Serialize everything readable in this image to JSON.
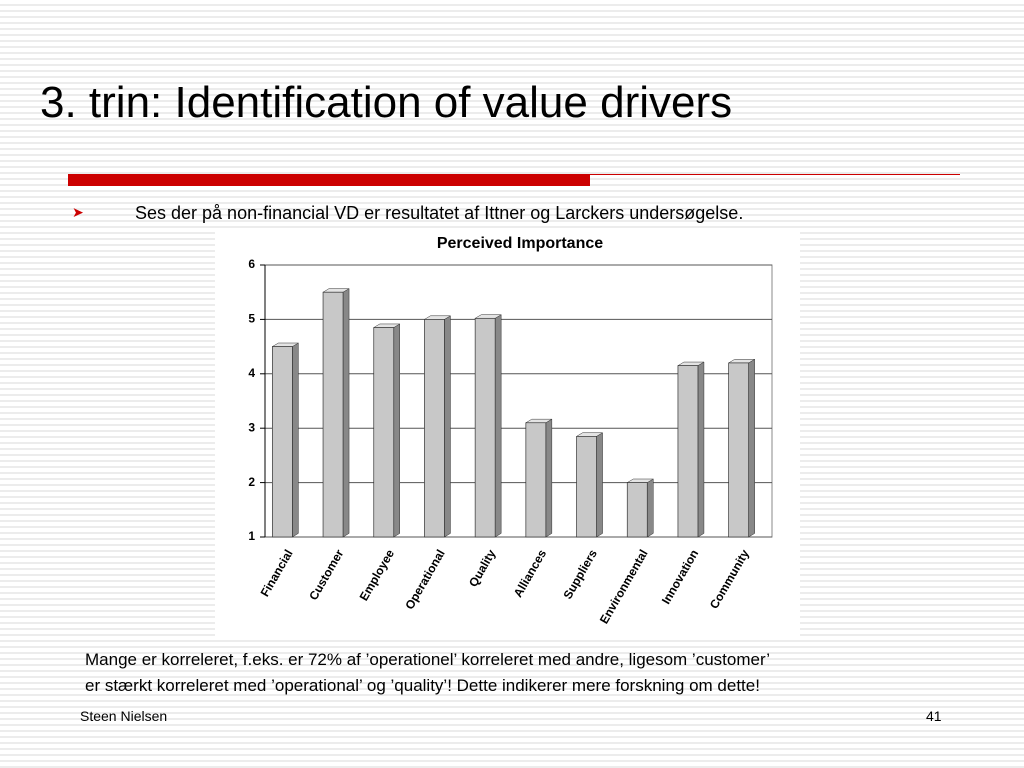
{
  "slide": {
    "title": "3. trin: Identification of value drivers",
    "bullet": "Ses der på non-financial VD er resultatet af Ittner og Larckers undersøgelse.",
    "note": [
      "Mange er korreleret, f.eks. er 72% af ’operationel’ korreleret med andre, ligesom ’customer’",
      "er stærkt korreleret med ’operational’ og ’quality’! Dette indikerer mere forskning om dette!"
    ],
    "author": "Steen Nielsen",
    "page": "41"
  },
  "chart_data": {
    "type": "bar",
    "title": "Perceived Importance",
    "categories": [
      "Financial",
      "Customer",
      "Employee",
      "Operational",
      "Quality",
      "Alliances",
      "Suppliers",
      "Environmental",
      "Innovation",
      "Community"
    ],
    "values": [
      4.5,
      5.5,
      4.85,
      5.0,
      5.02,
      3.1,
      2.85,
      2.0,
      4.15,
      4.2
    ],
    "color": "#c8c8c8",
    "ylim": [
      1,
      6
    ],
    "yticks": [
      1,
      2,
      3,
      4,
      5,
      6
    ],
    "grid": true
  }
}
